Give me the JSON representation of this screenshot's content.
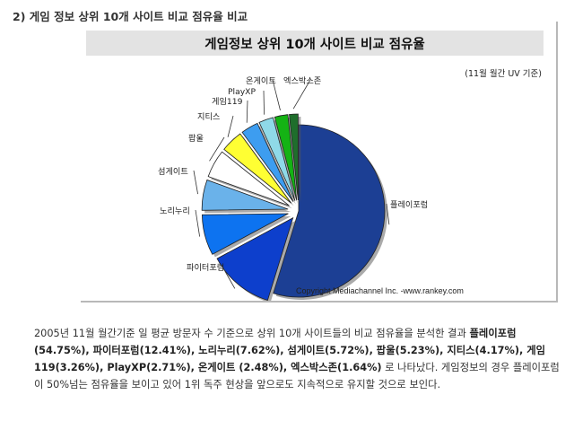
{
  "heading": "2) 게임 정보 상위 10개 사이트 비교 점유율 비교",
  "chart_data": {
    "type": "pie",
    "title": "게임정보 상위 10개 사이트 비교 점유율",
    "subtitle": "(11월 월간 UV 기준)",
    "copyright": "Copyright Mediachannel Inc. -www.rankey.com",
    "categories": [
      "플레이포럼",
      "파이터포럼",
      "노리누리",
      "섬게이트",
      "팝울",
      "지티스",
      "게임119",
      "PlayXP",
      "온게이트",
      "엑스박스존"
    ],
    "values": [
      54.75,
      12.41,
      7.62,
      5.72,
      5.23,
      4.17,
      3.26,
      2.71,
      2.48,
      1.64
    ],
    "colors": [
      "#1c3f94",
      "#0d3fcc",
      "#0d73f0",
      "#6ab2ea",
      "#ffffff",
      "#ffff33",
      "#3d9df0",
      "#8fd9e8",
      "#14b314",
      "#1f6e2c"
    ]
  },
  "description": {
    "intro": "2005년 11월 월간기준 일 평균 방문자 수 기준으로 상위 10개 사이트들의 비교 점유율을 분석한 결과 ",
    "stats": "플레이포럼(54.75%), 파이터포럼(12.41%), 노리누리(7.62%), 섬게이트(5.72%), 팝울(5.23%), 지티스(4.17%), 게임119(3.26%), PlayXP(2.71%), 온게이트 (2.48%), 엑스박스존(1.64%)",
    "outro": " 로 나타났다. 게임정보의 경우 플레이포럼이 50%넘는 점유율을 보이고 있어 1위 독주 현상을 앞으로도 지속적으로 유지할 것으로 보인다."
  }
}
